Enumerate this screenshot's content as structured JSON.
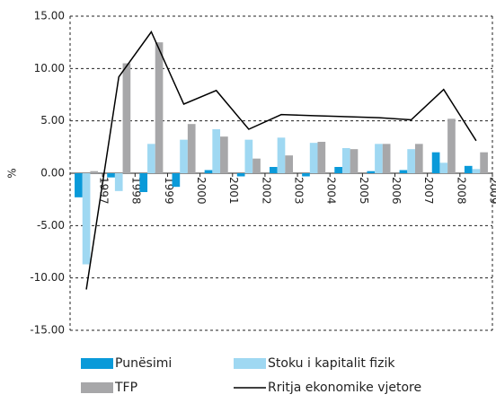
{
  "chart_data": {
    "type": "bar",
    "y_label": "%",
    "categories": [
      "1997",
      "1998",
      "1999",
      "2000",
      "2001",
      "2002",
      "2003",
      "2004",
      "2005",
      "2006",
      "2007",
      "2008",
      "2009"
    ],
    "series": [
      {
        "name": "Punësimi",
        "color": "#0a9ad9",
        "type": "bar",
        "values": [
          -2.3,
          -0.4,
          -1.8,
          -1.3,
          0.3,
          -0.3,
          0.6,
          -0.3,
          0.6,
          0.2,
          0.3,
          2.0,
          0.7
        ]
      },
      {
        "name": "Stoku i kapitalit fizik",
        "color": "#9fd8f2",
        "type": "bar",
        "values": [
          -8.7,
          -1.7,
          2.8,
          3.2,
          4.2,
          3.2,
          3.4,
          2.9,
          2.4,
          2.8,
          2.3,
          1.0,
          0.4
        ]
      },
      {
        "name": "TFP",
        "color": "#a7a7a9",
        "type": "bar",
        "values": [
          0.2,
          10.5,
          12.5,
          4.7,
          3.5,
          1.4,
          1.7,
          3.0,
          2.3,
          2.8,
          2.8,
          5.2,
          2.0
        ]
      },
      {
        "name": "Rritja ekonomike vjetore",
        "color": "#000000",
        "type": "line",
        "values": [
          -11.1,
          9.2,
          13.5,
          6.6,
          7.9,
          4.2,
          5.6,
          5.5,
          5.4,
          5.3,
          5.1,
          8.0,
          3.1
        ]
      }
    ],
    "ylim": [
      -15,
      15
    ],
    "yticks": [
      {
        "value": -15,
        "label": "-15.00"
      },
      {
        "value": -10,
        "label": "-10.00"
      },
      {
        "value": -5,
        "label": "-5.00"
      },
      {
        "value": 0,
        "label": "0.00"
      },
      {
        "value": 5,
        "label": "5.00"
      },
      {
        "value": 10,
        "label": "10.00"
      },
      {
        "value": 15,
        "label": "15.00"
      }
    ],
    "grid": true
  }
}
